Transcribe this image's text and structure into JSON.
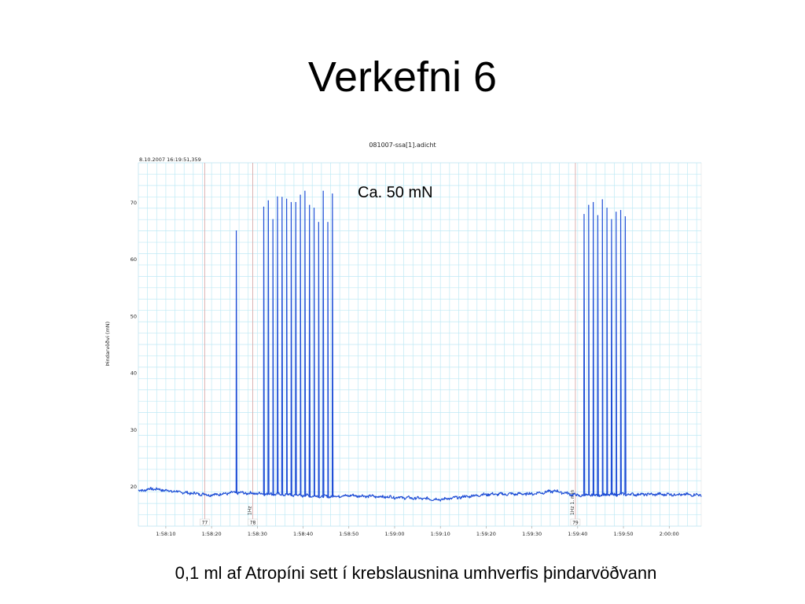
{
  "slide": {
    "title": "Verkefni 6",
    "caption": "0,1 ml af Atropíni sett í krebslausnina umhverfis þindarvöðvann"
  },
  "colors": {
    "trace": "#1f4fd6",
    "grid": "#bfe9f5",
    "marker": "#d9a9a9",
    "axis": "#999999"
  },
  "chart_data": {
    "type": "line",
    "file_title": "081007-ssa[1].adicht",
    "timestamp": "8.10.2007 16:19:51,359",
    "annotation": "Ca. 50 mN",
    "ylabel": "Þindarvöðvi (mN)",
    "xlabel": "",
    "ylim": [
      13,
      77
    ],
    "yticks": [
      20,
      30,
      40,
      50,
      60,
      70
    ],
    "xlim": [
      "1:58:04",
      "2:00:07"
    ],
    "xticks": [
      "1:58:10",
      "1:58:20",
      "1:58:30",
      "1:58:40",
      "1:58:50",
      "1:59:00",
      "1:59:10",
      "1:59:20",
      "1:59:30",
      "1:59:40",
      "1:59:50",
      "2:00:00"
    ],
    "grid": true,
    "baseline": [
      {
        "t": "1:58:04",
        "v": 19.2
      },
      {
        "t": "1:58:07",
        "v": 19.6
      },
      {
        "t": "1:58:14",
        "v": 18.9
      },
      {
        "t": "1:58:20",
        "v": 18.5
      },
      {
        "t": "1:58:25",
        "v": 18.9
      },
      {
        "t": "1:58:35",
        "v": 18.6
      },
      {
        "t": "1:58:45",
        "v": 18.2
      },
      {
        "t": "1:58:50",
        "v": 18.4
      },
      {
        "t": "1:59:00",
        "v": 18.1
      },
      {
        "t": "1:59:05",
        "v": 17.9
      },
      {
        "t": "1:59:10",
        "v": 17.7
      },
      {
        "t": "1:59:20",
        "v": 18.6
      },
      {
        "t": "1:59:30",
        "v": 18.7
      },
      {
        "t": "1:59:35",
        "v": 19.2
      },
      {
        "t": "1:59:40",
        "v": 18.4
      },
      {
        "t": "1:59:50",
        "v": 18.6
      },
      {
        "t": "2:00:00",
        "v": 18.6
      },
      {
        "t": "2:00:07",
        "v": 18.5
      }
    ],
    "peaks": [
      {
        "t": "1:58:25.4",
        "v": 65.0
      },
      {
        "t": "1:58:31.4",
        "v": 69.2
      },
      {
        "t": "1:58:32.4",
        "v": 70.3
      },
      {
        "t": "1:58:33.4",
        "v": 67.0
      },
      {
        "t": "1:58:34.4",
        "v": 71.0
      },
      {
        "t": "1:58:35.4",
        "v": 70.9
      },
      {
        "t": "1:58:36.4",
        "v": 70.6
      },
      {
        "t": "1:58:37.4",
        "v": 70.0
      },
      {
        "t": "1:58:38.4",
        "v": 70.0
      },
      {
        "t": "1:58:39.4",
        "v": 71.3
      },
      {
        "t": "1:58:40.4",
        "v": 72.0
      },
      {
        "t": "1:58:41.4",
        "v": 69.5
      },
      {
        "t": "1:58:42.4",
        "v": 69.0
      },
      {
        "t": "1:58:43.4",
        "v": 66.5
      },
      {
        "t": "1:58:44.4",
        "v": 72.0
      },
      {
        "t": "1:58:45.4",
        "v": 66.5
      },
      {
        "t": "1:58:46.4",
        "v": 71.5
      },
      {
        "t": "1:59:41.4",
        "v": 67.9
      },
      {
        "t": "1:59:42.4",
        "v": 69.5
      },
      {
        "t": "1:59:43.4",
        "v": 70.0
      },
      {
        "t": "1:59:44.4",
        "v": 67.7
      },
      {
        "t": "1:59:45.4",
        "v": 70.5
      },
      {
        "t": "1:59:46.4",
        "v": 69.0
      },
      {
        "t": "1:59:47.4",
        "v": 67.0
      },
      {
        "t": "1:59:48.4",
        "v": 68.3
      },
      {
        "t": "1:59:49.4",
        "v": 68.6
      },
      {
        "t": "1:59:50.4",
        "v": 67.5
      }
    ],
    "markers": [
      {
        "t": "1:58:18.5",
        "label": "77",
        "comment": ""
      },
      {
        "t": "1:58:29",
        "label": "78",
        "comment": "1Hz"
      },
      {
        "t": "1:59:39.5",
        "label": "79",
        "comment": "1Hz 1. min"
      }
    ]
  }
}
